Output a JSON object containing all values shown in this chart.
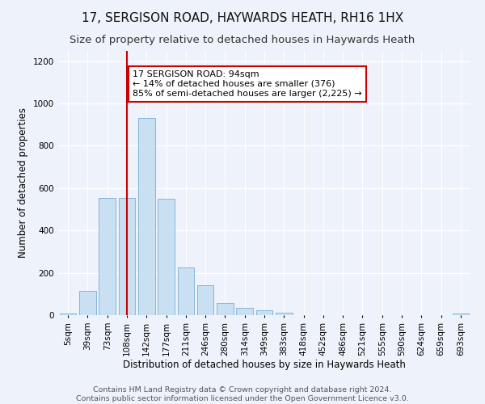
{
  "title": "17, SERGISON ROAD, HAYWARDS HEATH, RH16 1HX",
  "subtitle": "Size of property relative to detached houses in Haywards Heath",
  "xlabel": "Distribution of detached houses by size in Haywards Heath",
  "ylabel": "Number of detached properties",
  "bar_color": "#c9dff2",
  "bar_edge_color": "#7aadd4",
  "categories": [
    "5sqm",
    "39sqm",
    "73sqm",
    "108sqm",
    "142sqm",
    "177sqm",
    "211sqm",
    "246sqm",
    "280sqm",
    "314sqm",
    "349sqm",
    "383sqm",
    "418sqm",
    "452sqm",
    "486sqm",
    "521sqm",
    "555sqm",
    "590sqm",
    "624sqm",
    "659sqm",
    "693sqm"
  ],
  "values": [
    8,
    115,
    555,
    555,
    930,
    548,
    225,
    140,
    57,
    33,
    22,
    10,
    0,
    0,
    0,
    0,
    0,
    0,
    0,
    0,
    8
  ],
  "ylim": [
    0,
    1250
  ],
  "yticks": [
    0,
    200,
    400,
    600,
    800,
    1000,
    1200
  ],
  "vline_pos": 3.0,
  "vline_color": "#cc0000",
  "annotation_text": "17 SERGISON ROAD: 94sqm\n← 14% of detached houses are smaller (376)\n85% of semi-detached houses are larger (2,225) →",
  "annotation_box_color": "#ffffff",
  "annotation_box_edge_color": "#cc0000",
  "footer_line1": "Contains HM Land Registry data © Crown copyright and database right 2024.",
  "footer_line2": "Contains public sector information licensed under the Open Government Licence v3.0.",
  "background_color": "#eef2fa",
  "grid_color": "#ffffff",
  "title_fontsize": 11,
  "subtitle_fontsize": 9.5,
  "axis_label_fontsize": 8.5,
  "tick_fontsize": 7.5,
  "annotation_fontsize": 8,
  "footer_fontsize": 6.8
}
